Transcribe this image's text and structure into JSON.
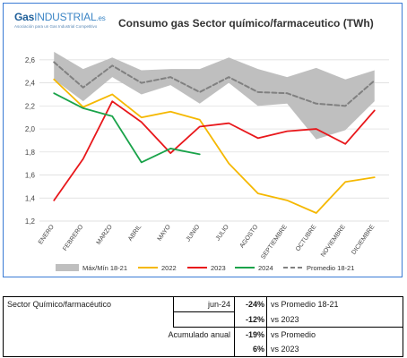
{
  "logo": {
    "gas": "Gas",
    "industrial": "INDUSTRIAL",
    "tld": ".es",
    "tagline": "Asociación para un Gas Industrial Competitivo"
  },
  "chart_data": {
    "type": "line",
    "title": "Consumo gas Sector químico/farmaceutico (TWh)",
    "categories": [
      "ENERO",
      "FEBRERO",
      "MARZO",
      "ABRIL",
      "MAYO",
      "JUNIO",
      "JULIO",
      "AGOSTO",
      "SEPTIEMBRE",
      "OCTUBRE",
      "NOVIEMBRE",
      "DICIEMBRE"
    ],
    "ylim": [
      1.2,
      2.7
    ],
    "yticks": [
      "1,2",
      "1,4",
      "1,6",
      "1,8",
      "2,0",
      "2,2",
      "2,4",
      "2,6"
    ],
    "grid": true,
    "legend_position": "bottom",
    "band": {
      "name": "Máx/Mín 18-21",
      "color": "#bfbfbf",
      "max": [
        2.67,
        2.52,
        2.62,
        2.51,
        2.52,
        2.52,
        2.62,
        2.52,
        2.45,
        2.53,
        2.43,
        2.51
      ],
      "min": [
        2.43,
        2.24,
        2.45,
        2.3,
        2.38,
        2.22,
        2.4,
        2.2,
        2.22,
        1.91,
        1.99,
        2.24
      ]
    },
    "series": [
      {
        "name": "2022",
        "color": "#f5b800",
        "dash": false,
        "values": [
          2.43,
          2.19,
          2.3,
          2.1,
          2.15,
          2.08,
          1.7,
          1.44,
          1.38,
          1.27,
          1.54,
          1.58
        ]
      },
      {
        "name": "2023",
        "color": "#e8171b",
        "dash": false,
        "values": [
          1.38,
          1.74,
          2.24,
          2.06,
          1.79,
          2.02,
          2.05,
          1.92,
          1.98,
          2.0,
          1.87,
          2.16
        ]
      },
      {
        "name": "2024",
        "color": "#1aa34a",
        "dash": false,
        "values": [
          2.31,
          2.18,
          2.11,
          1.71,
          1.83,
          1.78,
          null,
          null,
          null,
          null,
          null,
          null
        ]
      },
      {
        "name": "Promedio 18-21",
        "color": "#808080",
        "dash": true,
        "values": [
          2.58,
          2.36,
          2.55,
          2.4,
          2.45,
          2.32,
          2.45,
          2.32,
          2.31,
          2.22,
          2.2,
          2.42
        ]
      }
    ]
  },
  "summary": {
    "sector": "Sector Químico/farmacéutico",
    "period": "jun-24",
    "accum_label": "Acumulado anual",
    "rows": [
      {
        "pct": "-24%",
        "desc": "vs Promedio 18-21"
      },
      {
        "pct": "-12%",
        "desc": "vs 2023"
      },
      {
        "pct": "-19%",
        "desc": "vs Promedio"
      },
      {
        "pct": "6%",
        "desc": "vs 2023"
      }
    ]
  }
}
